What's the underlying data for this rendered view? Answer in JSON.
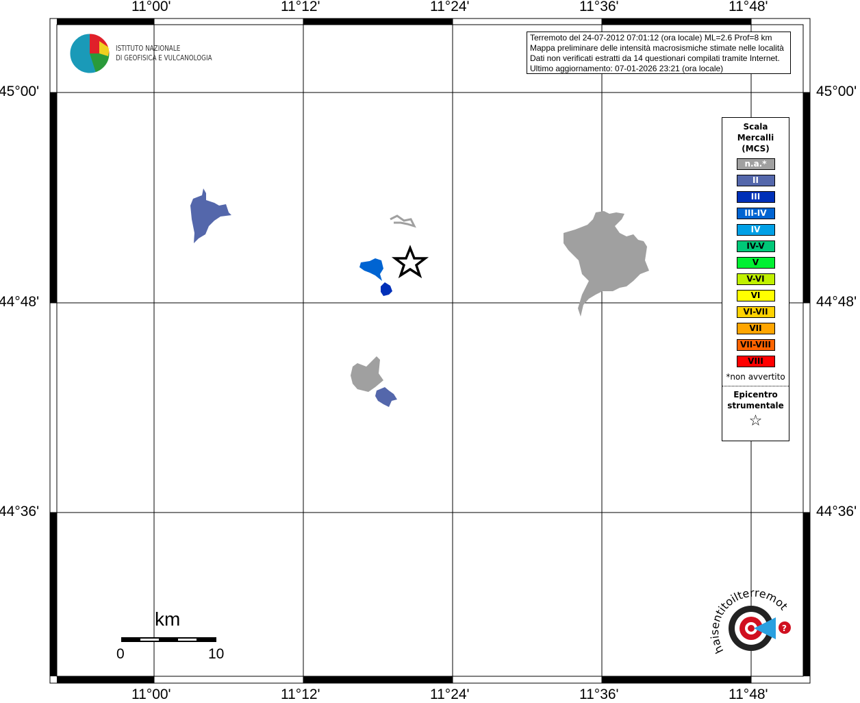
{
  "axes": {
    "lon_ticks": [
      "11°00'",
      "11°12'",
      "11°24'",
      "11°36'",
      "11°48'"
    ],
    "lat_ticks": [
      "45°00'",
      "44°48'",
      "44°36'"
    ]
  },
  "info": {
    "lines": [
      "Terremoto del 24-07-2012 07:01:12 (ora locale) ML=2.6 Prof=8 km",
      "Mappa preliminare delle intensità macrosismiche stimate nelle località",
      "Dati non verificati estratti da 14 questionari compilati tramite Internet.",
      "Ultimo aggiornamento: 07-01-2026 23:21 (ora locale)"
    ]
  },
  "logo_ingv": {
    "line1": "ISTITUTO NAZIONALE",
    "line2": "DI GEOFISICA E VULCANOLOGIA"
  },
  "logo_hsit": {
    "text": "www.haisentitoilterremoto.it"
  },
  "legend": {
    "title": [
      "Scala",
      "Mercalli",
      "(MCS)"
    ],
    "items": [
      {
        "label": "n.a.*",
        "color": "#a0a0a0",
        "text": "#ffffff"
      },
      {
        "label": "II",
        "color": "#5467ab",
        "text": "#ffffff"
      },
      {
        "label": "III",
        "color": "#0030b8",
        "text": "#ffffff"
      },
      {
        "label": "III-IV",
        "color": "#0064d2",
        "text": "#ffffff"
      },
      {
        "label": "IV",
        "color": "#00a0e6",
        "text": "#ffffff"
      },
      {
        "label": "IV-V",
        "color": "#00c878",
        "text": "#000000"
      },
      {
        "label": "V",
        "color": "#00f032",
        "text": "#000000"
      },
      {
        "label": "V-VI",
        "color": "#c0f000",
        "text": "#000000"
      },
      {
        "label": "VI",
        "color": "#ffff00",
        "text": "#000000"
      },
      {
        "label": "VI-VII",
        "color": "#ffd200",
        "text": "#000000"
      },
      {
        "label": "VII",
        "color": "#ffa500",
        "text": "#000000"
      },
      {
        "label": "VII-VIII",
        "color": "#ff6400",
        "text": "#000000"
      },
      {
        "label": "VIII",
        "color": "#ff0000",
        "text": "#000000"
      }
    ],
    "footnote": "*non avvertito",
    "epicenter_title": [
      "Epicentro",
      "strumentale"
    ],
    "epicenter_symbol": "☆"
  },
  "scale": {
    "unit": "km",
    "min": "0",
    "max": "10"
  }
}
